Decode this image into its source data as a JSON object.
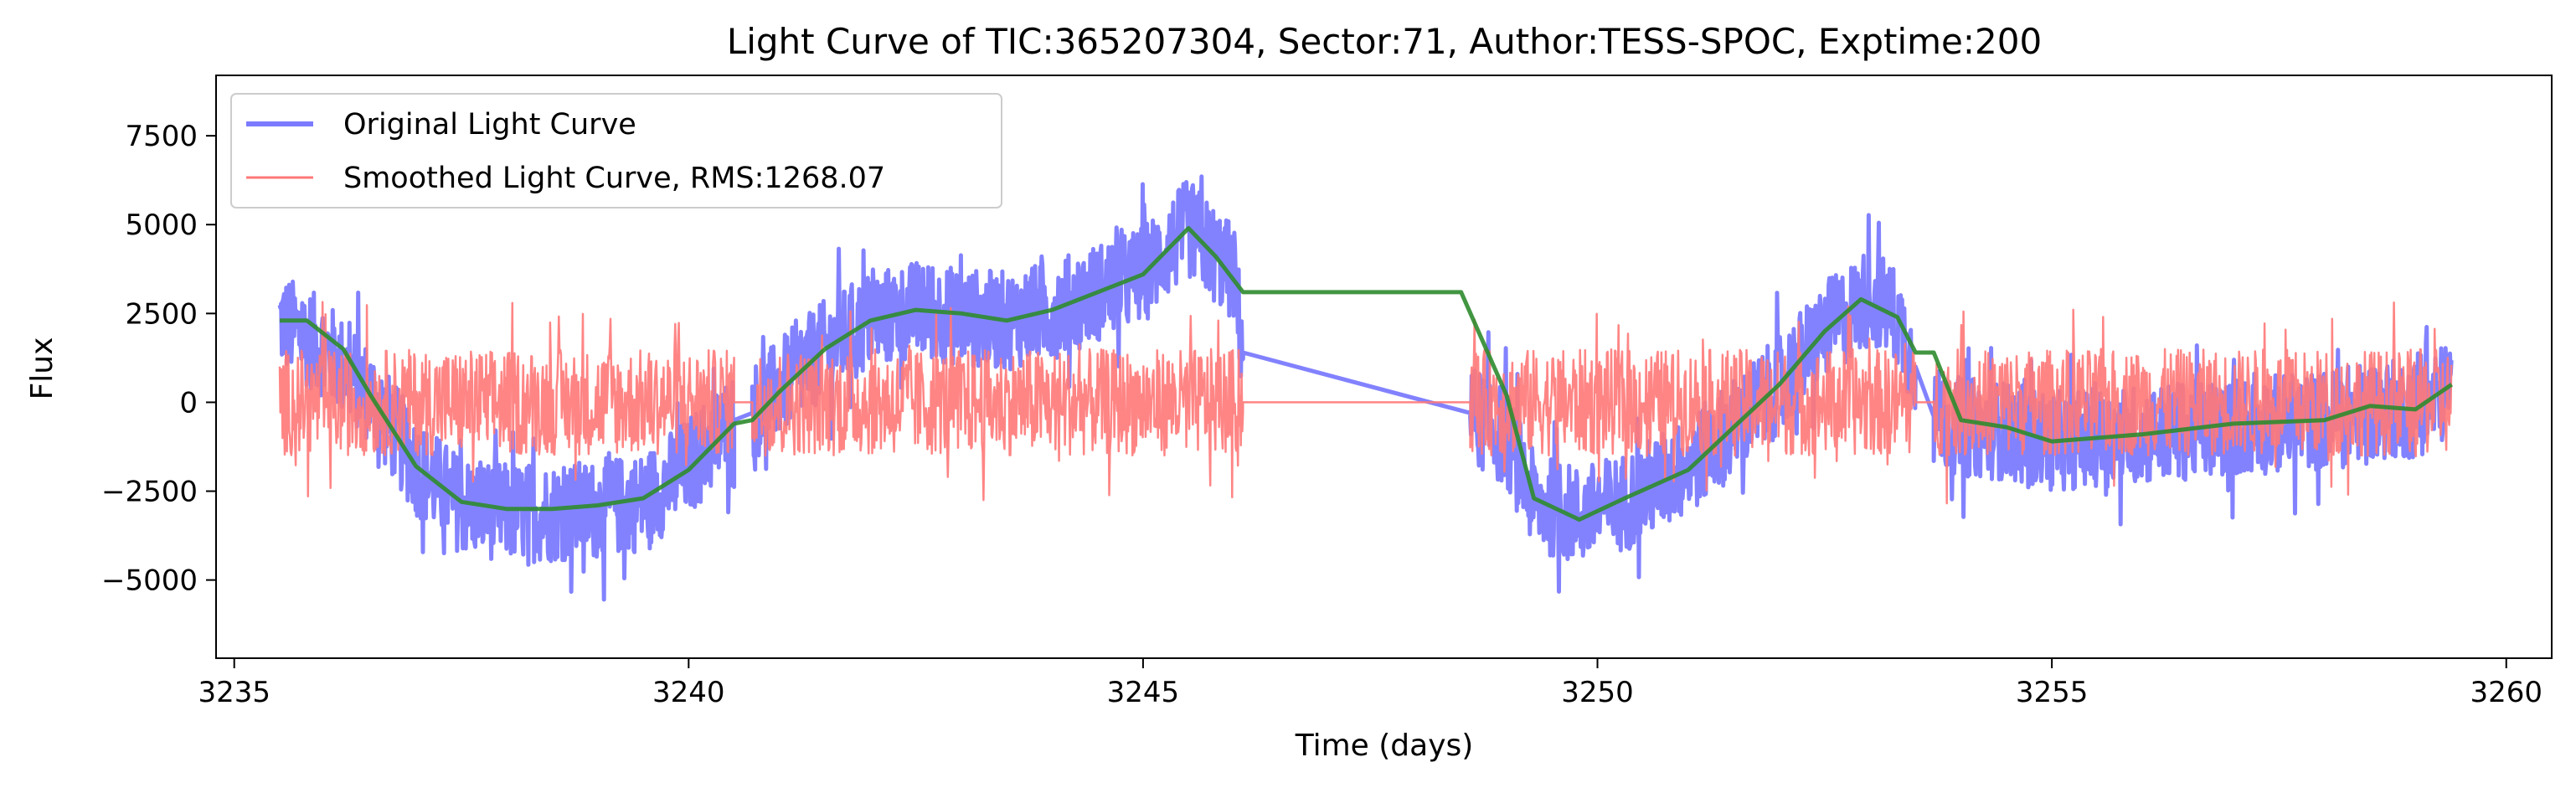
{
  "chart_data": {
    "type": "line",
    "title": "Light Curve of TIC:365207304, Sector:71, Author:TESS-SPOC, Exptime:200",
    "xlabel": "Time (days)",
    "ylabel": "Flux",
    "xlim": [
      3234.8,
      3260.5
    ],
    "ylim": [
      -7200,
      9200
    ],
    "xticks": [
      3235,
      3240,
      3245,
      3250,
      3255,
      3260
    ],
    "yticks": [
      -5000,
      -2500,
      0,
      2500,
      5000,
      7500
    ],
    "xtick_labels": [
      "3235",
      "3240",
      "3245",
      "3250",
      "3255",
      "3260"
    ],
    "ytick_labels": [
      "−5000",
      "−2500",
      "0",
      "2500",
      "5000",
      "7500"
    ],
    "grid": false,
    "legend_position": "top-left",
    "segments": [
      [
        3235.5,
        3240.5
      ],
      [
        3240.7,
        3246.1
      ],
      [
        3248.6,
        3253.5
      ],
      [
        3253.7,
        3259.4
      ]
    ],
    "series": [
      {
        "name": "Original Light Curve",
        "color": "#7b7bff",
        "trend": [
          [
            3235.5,
            2300
          ],
          [
            3236.0,
            1500
          ],
          [
            3236.5,
            200
          ],
          [
            3237.0,
            -1800
          ],
          [
            3237.5,
            -2900
          ],
          [
            3238.0,
            -3100
          ],
          [
            3238.5,
            -3100
          ],
          [
            3239.0,
            -3000
          ],
          [
            3239.5,
            -2800
          ],
          [
            3240.0,
            -1800
          ],
          [
            3240.5,
            -500
          ],
          [
            3240.7,
            -300
          ],
          [
            3241.0,
            400
          ],
          [
            3241.5,
            1500
          ],
          [
            3242.0,
            2300
          ],
          [
            3242.5,
            2600
          ],
          [
            3243.0,
            2400
          ],
          [
            3243.5,
            2300
          ],
          [
            3244.0,
            2600
          ],
          [
            3244.5,
            3100
          ],
          [
            3245.0,
            3600
          ],
          [
            3245.5,
            4900
          ],
          [
            3246.0,
            3600
          ],
          [
            3246.1,
            1400
          ],
          [
            3248.5,
            300
          ],
          [
            3248.6,
            -300
          ],
          [
            3249.0,
            -1000
          ],
          [
            3249.3,
            -2800
          ],
          [
            3249.8,
            -3200
          ],
          [
            3250.3,
            -2800
          ],
          [
            3251.0,
            -1800
          ],
          [
            3251.5,
            -700
          ],
          [
            3252.0,
            500
          ],
          [
            3252.5,
            2000
          ],
          [
            3253.0,
            3000
          ],
          [
            3253.3,
            2400
          ],
          [
            3253.5,
            1000
          ],
          [
            3253.7,
            -400
          ],
          [
            3254.0,
            -700
          ],
          [
            3254.5,
            -800
          ],
          [
            3255.0,
            -1100
          ],
          [
            3256.0,
            -900
          ],
          [
            3257.0,
            -700
          ],
          [
            3258.0,
            -500
          ],
          [
            3258.5,
            -200
          ],
          [
            3259.0,
            -200
          ],
          [
            3259.4,
            400
          ]
        ],
        "noise_amplitude": 1400
      },
      {
        "name": "Smoothed Light Curve, RMS:1268.07",
        "color": "#ff7878",
        "trend": [
          [
            3235.5,
            0
          ],
          [
            3240.5,
            0
          ],
          [
            3240.7,
            0
          ],
          [
            3246.1,
            0
          ],
          [
            3248.5,
            -2900
          ],
          [
            3248.6,
            0
          ],
          [
            3253.5,
            0
          ],
          [
            3253.7,
            0
          ],
          [
            3259.4,
            0
          ]
        ],
        "noise_amplitude": 1500
      },
      {
        "name": "",
        "color": "#2e8b2e",
        "trend": [
          [
            3235.5,
            2300
          ],
          [
            3235.8,
            2300
          ],
          [
            3236.2,
            1500
          ],
          [
            3236.5,
            200
          ],
          [
            3237.0,
            -1800
          ],
          [
            3237.5,
            -2800
          ],
          [
            3238.0,
            -3000
          ],
          [
            3238.5,
            -3000
          ],
          [
            3239.0,
            -2900
          ],
          [
            3239.5,
            -2700
          ],
          [
            3240.0,
            -1900
          ],
          [
            3240.5,
            -600
          ],
          [
            3240.7,
            -500
          ],
          [
            3241.0,
            300
          ],
          [
            3241.5,
            1500
          ],
          [
            3242.0,
            2300
          ],
          [
            3242.5,
            2600
          ],
          [
            3243.0,
            2500
          ],
          [
            3243.5,
            2300
          ],
          [
            3244.0,
            2600
          ],
          [
            3244.5,
            3100
          ],
          [
            3245.0,
            3600
          ],
          [
            3245.5,
            4900
          ],
          [
            3245.8,
            4100
          ],
          [
            3246.1,
            3100
          ],
          [
            3248.5,
            3100
          ],
          [
            3249.0,
            200
          ],
          [
            3249.3,
            -2700
          ],
          [
            3249.8,
            -3300
          ],
          [
            3250.3,
            -2700
          ],
          [
            3251.0,
            -1900
          ],
          [
            3251.5,
            -700
          ],
          [
            3252.0,
            500
          ],
          [
            3252.5,
            2000
          ],
          [
            3252.9,
            2900
          ],
          [
            3253.3,
            2400
          ],
          [
            3253.5,
            1400
          ],
          [
            3253.7,
            1400
          ],
          [
            3254.0,
            -500
          ],
          [
            3254.5,
            -700
          ],
          [
            3255.0,
            -1100
          ],
          [
            3256.0,
            -900
          ],
          [
            3257.0,
            -600
          ],
          [
            3258.0,
            -500
          ],
          [
            3258.5,
            -100
          ],
          [
            3259.0,
            -200
          ],
          [
            3259.4,
            500
          ]
        ],
        "noise_amplitude": 0
      }
    ]
  }
}
